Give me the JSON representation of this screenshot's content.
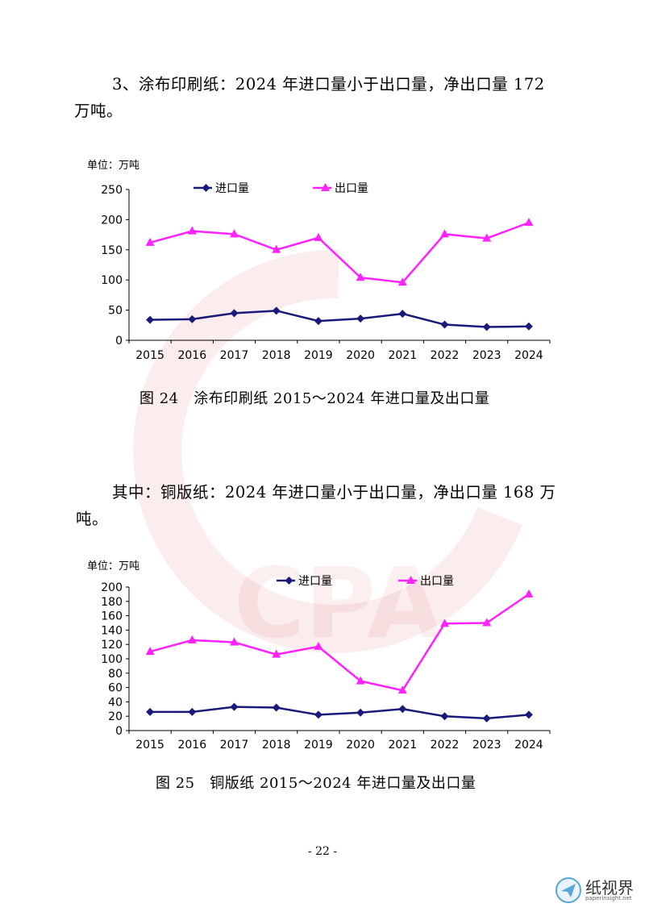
{
  "section1": {
    "line1": "3、涂布印刷纸：2024 年进口量小于出口量，净出口量 172",
    "line2": "万吨。"
  },
  "section2": {
    "line1": "其中：铜版纸：2024 年进口量小于出口量，净出口量 168 万",
    "line2": "吨。"
  },
  "captions": {
    "fig24": "图 24   涂布印刷纸 2015～2024 年进口量及出口量",
    "fig25": "图 25   铜版纸 2015～2024 年进口量及出口量"
  },
  "chart_data": [
    {
      "type": "line",
      "unit_label": "单位：万吨",
      "x": [
        "2015",
        "2016",
        "2017",
        "2018",
        "2019",
        "2020",
        "2021",
        "2022",
        "2023",
        "2024"
      ],
      "ylim": [
        0,
        250
      ],
      "yticks": [
        0,
        50,
        100,
        150,
        200,
        250
      ],
      "legend_position": "top",
      "series": [
        {
          "name": "进口量",
          "color": "#1a1a7a",
          "marker": "diamond",
          "values": [
            34,
            35,
            45,
            49,
            32,
            36,
            44,
            26,
            22,
            23
          ]
        },
        {
          "name": "出口量",
          "color": "#ff22ff",
          "marker": "triangle",
          "values": [
            162,
            181,
            176,
            150,
            170,
            104,
            96,
            176,
            169,
            195
          ]
        }
      ]
    },
    {
      "type": "line",
      "unit_label": "单位：万吨",
      "x": [
        "2015",
        "2016",
        "2017",
        "2018",
        "2019",
        "2020",
        "2021",
        "2022",
        "2023",
        "2024"
      ],
      "ylim": [
        0,
        200
      ],
      "yticks": [
        0,
        20,
        40,
        60,
        80,
        100,
        120,
        140,
        160,
        180,
        200
      ],
      "legend_position": "top",
      "series": [
        {
          "name": "进口量",
          "color": "#1a1a7a",
          "marker": "diamond",
          "values": [
            26,
            26,
            33,
            32,
            22,
            25,
            30,
            20,
            17,
            22
          ]
        },
        {
          "name": "出口量",
          "color": "#ff22ff",
          "marker": "triangle",
          "values": [
            110,
            126,
            123,
            106,
            117,
            69,
            56,
            149,
            150,
            190
          ]
        }
      ]
    }
  ],
  "page_number": "- 22 -",
  "logo": {
    "main": "纸视界",
    "sub": "paperinsight.net"
  }
}
